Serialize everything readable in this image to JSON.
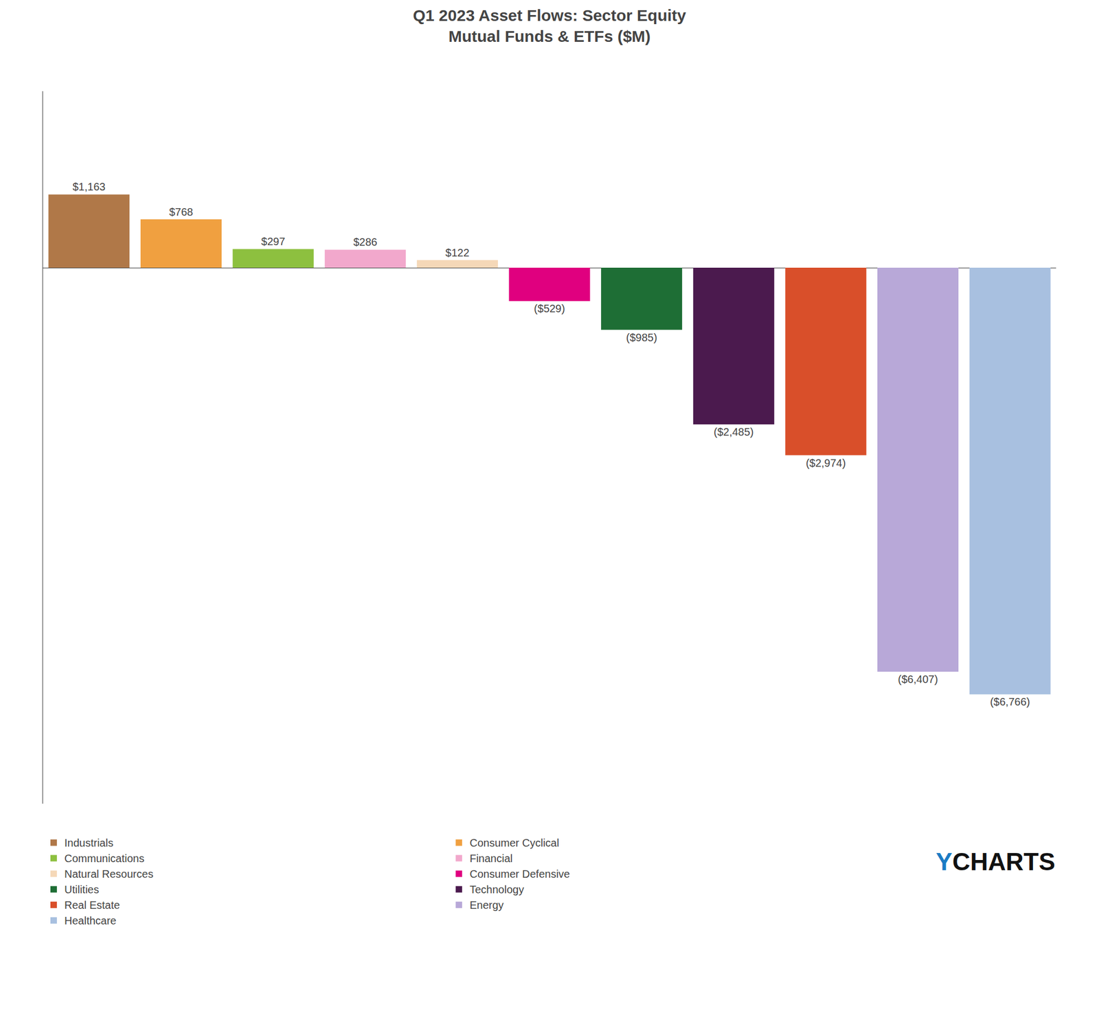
{
  "chart_data": {
    "type": "bar",
    "title": "Q1 2023 Asset Flows: Sector Equity\nMutual Funds & ETFs ($M)",
    "categories": [
      "Industrials",
      "Consumer Cyclical",
      "Communications",
      "Financial",
      "Natural Resources",
      "Consumer Defensive",
      "Utilities",
      "Technology",
      "Real Estate",
      "Energy",
      "Healthcare"
    ],
    "values": [
      1163,
      768,
      297,
      286,
      122,
      -529,
      -985,
      -2485,
      -2974,
      -6407,
      -6766
    ],
    "value_labels": [
      "$1,163",
      "$768",
      "$297",
      "$286",
      "$122",
      "($529)",
      "($985)",
      "($2,485)",
      "($2,974)",
      "($6,407)",
      "($6,766)"
    ],
    "colors": [
      "#b07848",
      "#f0a040",
      "#8dc03f",
      "#f2a8cc",
      "#f5d8b8",
      "#e0007f",
      "#1e6e35",
      "#4b1a4e",
      "#d94f2a",
      "#b8a8d8",
      "#a8c0e0"
    ],
    "ylim": [
      -8500,
      2800
    ],
    "yticks": [],
    "grid": false,
    "tick_labels": false,
    "data_labels": true,
    "legend": "bottom",
    "annotations": [
      {
        "text": "Y",
        "color": "#1a7bc4"
      },
      {
        "text": "CHARTS",
        "color": "#111111"
      }
    ]
  }
}
